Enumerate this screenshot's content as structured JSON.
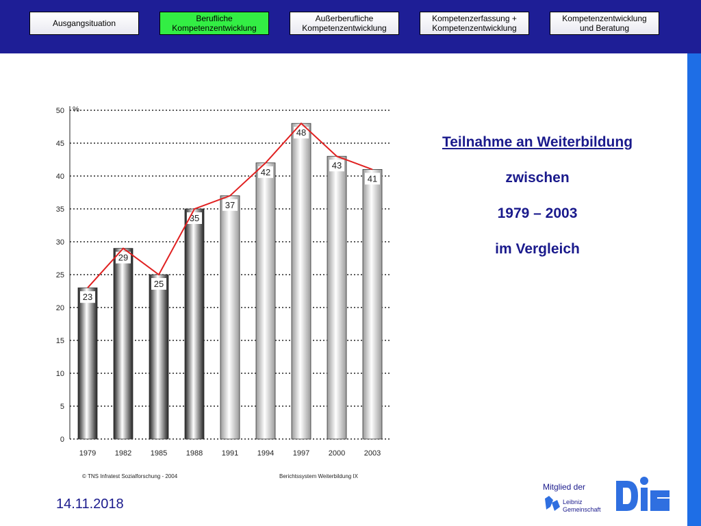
{
  "nav": {
    "tabs": [
      {
        "label_1": "Ausgangsituation",
        "label_2": "",
        "active": false
      },
      {
        "label_1": "Berufliche",
        "label_2": "Kompetenzentwicklung",
        "active": true
      },
      {
        "label_1": "Außerberufliche",
        "label_2": "Kompetenzentwicklung",
        "active": false
      },
      {
        "label_1": "Kompetenzerfassung +",
        "label_2": "Kompetenzentwicklung",
        "active": false
      },
      {
        "label_1": "Kompetenzentwicklung",
        "label_2": "und Beratung",
        "active": false
      }
    ]
  },
  "heading": {
    "line_1": "Teilnahme an Weiterbildung",
    "line_2": "zwischen",
    "line_3": "1979 – 2003",
    "line_4": "im Vergleich"
  },
  "footer": {
    "date": "14.11.2018",
    "member_label": "Mitglied der",
    "logo_text": "DIE",
    "leibniz_line_1": "Leibniz",
    "leibniz_line_2": "Gemeinschaft"
  },
  "colors": {
    "header": "#1e1e96",
    "accent_bar": "#1e6ee6",
    "active_tab": "#33ee44",
    "title_text": "#1a1a8c",
    "trend_line": "#e02020",
    "logo": "#2f6fe0"
  },
  "chart_data": {
    "type": "bar",
    "categories": [
      "1979",
      "1982",
      "1985",
      "1988",
      "1991",
      "1994",
      "1997",
      "2000",
      "2003"
    ],
    "values": [
      23,
      29,
      25,
      35,
      37,
      42,
      48,
      43,
      41
    ],
    "bar_styles": [
      "dark",
      "dark",
      "dark",
      "dark",
      "light",
      "light",
      "light",
      "light",
      "light"
    ],
    "ylim": [
      0,
      50
    ],
    "yticks": [
      0,
      5,
      10,
      15,
      20,
      25,
      30,
      35,
      40,
      45,
      50
    ],
    "ylabel": "%",
    "grid": true,
    "line_overlay": true,
    "source_left": "© TNS Infratest Sozialforschung - 2004",
    "source_right": "Berichtssystem Weiterbildung IX"
  }
}
